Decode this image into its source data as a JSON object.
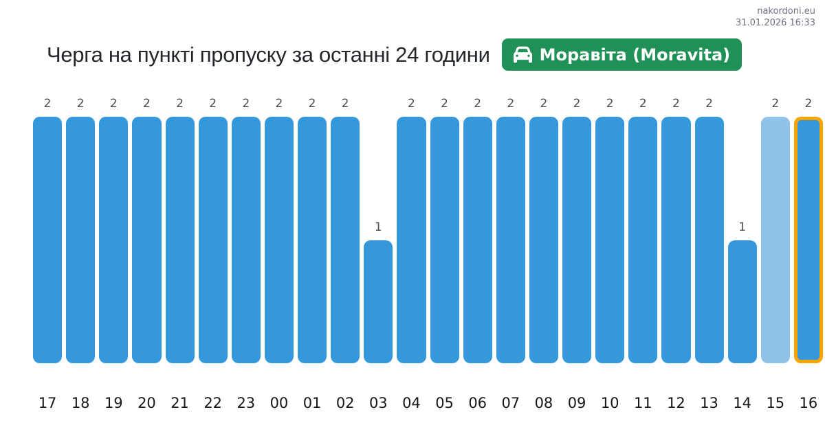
{
  "header": {
    "site": "nakordoni.eu",
    "timestamp": "31.01.2026 16:33"
  },
  "title": "Черга на пункті пропуску за останні 24 години",
  "badge": {
    "label": "Моравіта (Moravita)",
    "icon": "car-icon",
    "background_color": "#1f9156",
    "text_color": "#ffffff"
  },
  "chart_data": {
    "type": "bar",
    "title": "Черга на пункті пропуску за останні 24 години",
    "xlabel": "",
    "ylabel": "",
    "ylim": [
      0,
      2
    ],
    "grid": false,
    "axes_shown": false,
    "value_labels_shown": true,
    "categories": [
      "17",
      "18",
      "19",
      "20",
      "21",
      "22",
      "23",
      "00",
      "01",
      "02",
      "03",
      "04",
      "05",
      "06",
      "07",
      "08",
      "09",
      "10",
      "11",
      "12",
      "13",
      "14",
      "15",
      "16"
    ],
    "values": [
      2,
      2,
      2,
      2,
      2,
      2,
      2,
      2,
      2,
      2,
      1,
      2,
      2,
      2,
      2,
      2,
      2,
      2,
      2,
      2,
      2,
      1,
      2,
      2
    ],
    "bar_variants": [
      "normal",
      "normal",
      "normal",
      "normal",
      "normal",
      "normal",
      "normal",
      "normal",
      "normal",
      "normal",
      "normal",
      "normal",
      "normal",
      "normal",
      "normal",
      "normal",
      "normal",
      "normal",
      "normal",
      "normal",
      "normal",
      "normal",
      "light",
      "highlight"
    ],
    "colors": {
      "bar": "#3598db",
      "bar_light": "#8fc3ea",
      "highlight_border": "#f7a500"
    }
  }
}
